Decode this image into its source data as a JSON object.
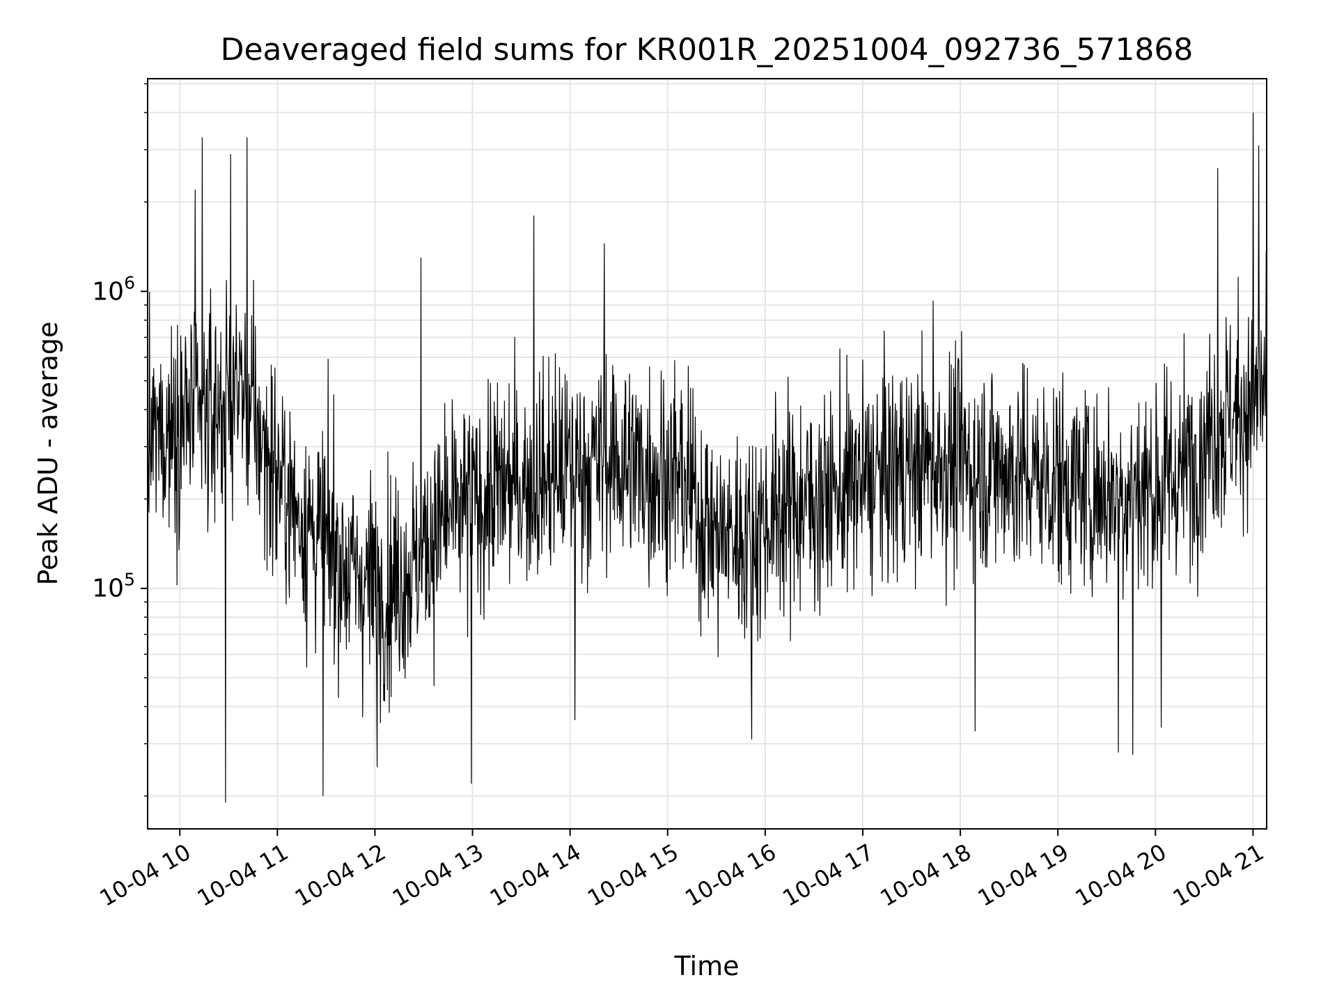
{
  "chart_data": {
    "type": "line",
    "title": "Deaveraged field sums for KR001R_20251004_092736_571868",
    "xlabel": "Time",
    "ylabel": "Peak ADU - average",
    "yscale": "log",
    "ylim": [
      15500,
      5200000
    ],
    "xlim_hours": [
      9.67,
      21.14
    ],
    "grid": true,
    "line_color": "#000000",
    "grid_color": "#e5e5e5",
    "x_ticks": [
      {
        "hour": 10,
        "label": "10-04 10"
      },
      {
        "hour": 11,
        "label": "10-04 11"
      },
      {
        "hour": 12,
        "label": "10-04 12"
      },
      {
        "hour": 13,
        "label": "10-04 13"
      },
      {
        "hour": 14,
        "label": "10-04 14"
      },
      {
        "hour": 15,
        "label": "10-04 15"
      },
      {
        "hour": 16,
        "label": "10-04 16"
      },
      {
        "hour": 17,
        "label": "10-04 17"
      },
      {
        "hour": 18,
        "label": "10-04 18"
      },
      {
        "hour": 19,
        "label": "10-04 19"
      },
      {
        "hour": 20,
        "label": "10-04 20"
      },
      {
        "hour": 21,
        "label": "10-04 21"
      }
    ],
    "y_ticks": [
      {
        "value": 100000,
        "base": "10",
        "exp": "5"
      },
      {
        "value": 1000000,
        "base": "10",
        "exp": "6"
      }
    ],
    "series": [
      {
        "name": "deaveraged field sum",
        "baseline": [
          {
            "h": 9.67,
            "v": 300000
          },
          {
            "h": 10.0,
            "v": 380000
          },
          {
            "h": 10.3,
            "v": 380000
          },
          {
            "h": 10.6,
            "v": 500000
          },
          {
            "h": 10.9,
            "v": 280000
          },
          {
            "h": 11.2,
            "v": 180000
          },
          {
            "h": 11.5,
            "v": 140000
          },
          {
            "h": 11.8,
            "v": 110000
          },
          {
            "h": 12.1,
            "v": 100000
          },
          {
            "h": 12.4,
            "v": 120000
          },
          {
            "h": 12.7,
            "v": 170000
          },
          {
            "h": 13.0,
            "v": 190000
          },
          {
            "h": 13.3,
            "v": 220000
          },
          {
            "h": 13.6,
            "v": 230000
          },
          {
            "h": 13.9,
            "v": 250000
          },
          {
            "h": 14.2,
            "v": 260000
          },
          {
            "h": 14.5,
            "v": 270000
          },
          {
            "h": 14.8,
            "v": 250000
          },
          {
            "h": 15.1,
            "v": 240000
          },
          {
            "h": 15.5,
            "v": 150000
          },
          {
            "h": 15.8,
            "v": 150000
          },
          {
            "h": 16.2,
            "v": 190000
          },
          {
            "h": 16.6,
            "v": 200000
          },
          {
            "h": 17.0,
            "v": 230000
          },
          {
            "h": 17.5,
            "v": 260000
          },
          {
            "h": 18.0,
            "v": 270000
          },
          {
            "h": 18.5,
            "v": 250000
          },
          {
            "h": 19.0,
            "v": 230000
          },
          {
            "h": 19.5,
            "v": 210000
          },
          {
            "h": 20.0,
            "v": 220000
          },
          {
            "h": 20.3,
            "v": 250000
          },
          {
            "h": 20.6,
            "v": 350000
          },
          {
            "h": 20.9,
            "v": 400000
          },
          {
            "h": 21.14,
            "v": 480000
          }
        ],
        "noise_decades": 0.36,
        "samples": 2400,
        "peaks": [
          {
            "h": 10.16,
            "v": 2200000
          },
          {
            "h": 10.23,
            "v": 3300000
          },
          {
            "h": 10.52,
            "v": 2900000
          },
          {
            "h": 10.69,
            "v": 3300000
          },
          {
            "h": 11.58,
            "v": 450000
          },
          {
            "h": 12.47,
            "v": 1300000
          },
          {
            "h": 13.63,
            "v": 1800000
          },
          {
            "h": 14.35,
            "v": 1450000
          },
          {
            "h": 17.72,
            "v": 930000
          },
          {
            "h": 20.64,
            "v": 2600000
          },
          {
            "h": 21.0,
            "v": 4000000
          },
          {
            "h": 21.06,
            "v": 3100000
          }
        ],
        "troughs": [
          {
            "h": 10.47,
            "v": 19000
          },
          {
            "h": 11.47,
            "v": 20000
          },
          {
            "h": 12.02,
            "v": 25000
          },
          {
            "h": 12.99,
            "v": 22000
          },
          {
            "h": 14.05,
            "v": 36000
          },
          {
            "h": 15.86,
            "v": 31000
          },
          {
            "h": 18.15,
            "v": 33000
          },
          {
            "h": 19.62,
            "v": 28000
          },
          {
            "h": 19.77,
            "v": 27500
          },
          {
            "h": 20.06,
            "v": 34000
          }
        ]
      }
    ]
  }
}
